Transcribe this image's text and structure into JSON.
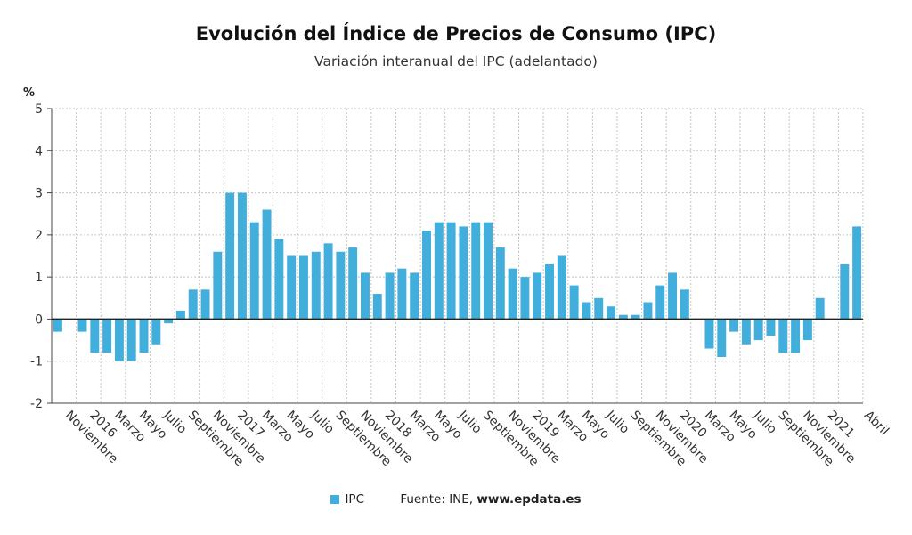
{
  "chart_data": {
    "type": "bar",
    "title": "Evolución del Índice de Precios de Consumo (IPC)",
    "subtitle": "Variación interanual del IPC (adelantado)",
    "ylabel": "%",
    "ylim": [
      -2,
      5
    ],
    "yticks": [
      5,
      4,
      3,
      2,
      1,
      0,
      -1,
      -2
    ],
    "grid": true,
    "legend_position": "bottom",
    "bar_color": "#41aedc",
    "series": [
      {
        "name": "IPC",
        "values": [
          -0.3,
          0.0,
          -0.3,
          -0.8,
          -0.8,
          -1.0,
          -1.0,
          -0.8,
          -0.6,
          -0.1,
          0.2,
          0.7,
          0.7,
          1.6,
          3.0,
          3.0,
          2.3,
          2.6,
          1.9,
          1.5,
          1.5,
          1.6,
          1.8,
          1.6,
          1.7,
          1.1,
          0.6,
          1.1,
          1.2,
          1.1,
          2.1,
          2.3,
          2.3,
          2.2,
          2.3,
          2.3,
          1.7,
          1.2,
          1.0,
          1.1,
          1.3,
          1.5,
          0.8,
          0.4,
          0.5,
          0.3,
          0.1,
          0.1,
          0.4,
          0.8,
          1.1,
          0.7,
          0.0,
          -0.7,
          -0.9,
          -0.3,
          -0.6,
          -0.5,
          -0.4,
          -0.8,
          -0.8,
          -0.5,
          0.5,
          0.0,
          1.3,
          2.2
        ]
      }
    ],
    "x_tick_labels": [
      {
        "index": 1,
        "label": "Noviembre"
      },
      {
        "index": 3,
        "label": "2016"
      },
      {
        "index": 5,
        "label": "Marzo"
      },
      {
        "index": 7,
        "label": "Mayo"
      },
      {
        "index": 9,
        "label": "Julio"
      },
      {
        "index": 11,
        "label": "Septiembre"
      },
      {
        "index": 13,
        "label": "Noviembre"
      },
      {
        "index": 15,
        "label": "2017"
      },
      {
        "index": 17,
        "label": "Marzo"
      },
      {
        "index": 19,
        "label": "Mayo"
      },
      {
        "index": 21,
        "label": "Julio"
      },
      {
        "index": 23,
        "label": "Septiembre"
      },
      {
        "index": 25,
        "label": "Noviembre"
      },
      {
        "index": 27,
        "label": "2018"
      },
      {
        "index": 29,
        "label": "Marzo"
      },
      {
        "index": 31,
        "label": "Mayo"
      },
      {
        "index": 33,
        "label": "Julio"
      },
      {
        "index": 35,
        "label": "Septiembre"
      },
      {
        "index": 37,
        "label": "Noviembre"
      },
      {
        "index": 39,
        "label": "2019"
      },
      {
        "index": 41,
        "label": "Marzo"
      },
      {
        "index": 43,
        "label": "Mayo"
      },
      {
        "index": 45,
        "label": "Julio"
      },
      {
        "index": 47,
        "label": "Septiembre"
      },
      {
        "index": 49,
        "label": "Noviembre"
      },
      {
        "index": 51,
        "label": "2020"
      },
      {
        "index": 53,
        "label": "Marzo"
      },
      {
        "index": 55,
        "label": "Mayo"
      },
      {
        "index": 57,
        "label": "Julio"
      },
      {
        "index": 59,
        "label": "Septiembre"
      },
      {
        "index": 61,
        "label": "Noviembre"
      },
      {
        "index": 63,
        "label": "2021"
      },
      {
        "index": 66,
        "label": "Abril"
      }
    ],
    "legend": {
      "series_label": "IPC",
      "source_prefix": "Fuente: INE, ",
      "source_site": "www.epdata.es"
    }
  }
}
